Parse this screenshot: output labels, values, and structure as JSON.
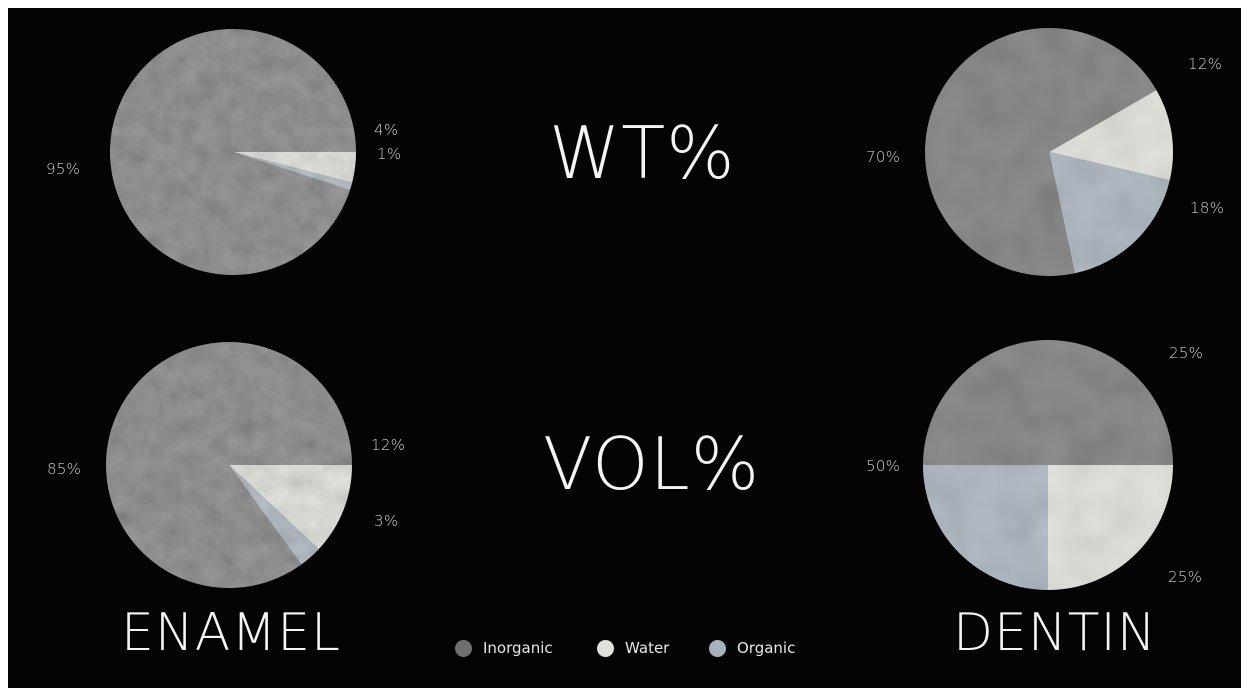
{
  "colors": {
    "inorganic": "#777777",
    "water": "#e2e2dc",
    "organic": "#a6b1bc",
    "background": "#040404",
    "text": "#ececec"
  },
  "headings": {
    "wt": "WT%",
    "vol": "VOL%",
    "enamel": "ENAMEL",
    "dentin": "DENTIN"
  },
  "legend": [
    {
      "label": "Inorganic",
      "color": "#6f6f6f"
    },
    {
      "label": "Water",
      "color": "#e2e2dc"
    },
    {
      "label": "Organic",
      "color": "#a6b1bc"
    }
  ],
  "chart_data": [
    {
      "type": "pie",
      "title": "",
      "tissue": "ENAMEL",
      "measure": "WT%",
      "categories": [
        "Inorganic",
        "Water",
        "Organic"
      ],
      "values": [
        95,
        4,
        1
      ],
      "labels": [
        "95%",
        "4%",
        "1%"
      ]
    },
    {
      "type": "pie",
      "title": "",
      "tissue": "DENTIN",
      "measure": "WT%",
      "categories": [
        "Inorganic",
        "Water",
        "Organic"
      ],
      "values": [
        70,
        12,
        18
      ],
      "labels": [
        "70%",
        "12%",
        "18%"
      ]
    },
    {
      "type": "pie",
      "title": "",
      "tissue": "ENAMEL",
      "measure": "VOL%",
      "categories": [
        "Inorganic",
        "Water",
        "Organic"
      ],
      "values": [
        85,
        12,
        3
      ],
      "labels": [
        "85%",
        "12%",
        "3%"
      ]
    },
    {
      "type": "pie",
      "title": "",
      "tissue": "DENTIN",
      "measure": "VOL%",
      "categories": [
        "Inorganic",
        "Water",
        "Organic"
      ],
      "values": [
        50,
        25,
        25
      ],
      "labels": [
        "50%",
        "25%",
        "25%"
      ]
    }
  ]
}
